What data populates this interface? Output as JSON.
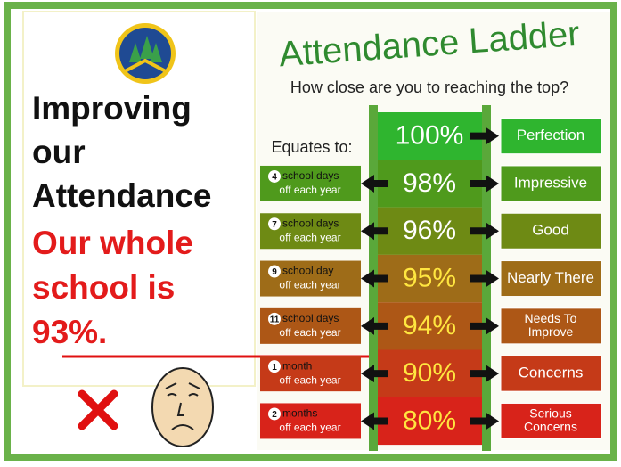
{
  "left_panel": {
    "lines": [
      "Improving",
      "our",
      "Attendance"
    ],
    "highlight_lines": [
      "Our whole",
      "school is",
      "93%."
    ]
  },
  "ladder": {
    "title": "Attendance Ladder",
    "subtitle": "How close are you to reaching the top?",
    "equates_label": "Equates to:",
    "rungs": [
      {
        "percent": "100%",
        "rating": [
          "Perfection"
        ]
      },
      {
        "percent": "98%",
        "days_number": "4",
        "days_text": "school days",
        "per_year": "off each year",
        "rating": [
          "Impressive"
        ]
      },
      {
        "percent": "96%",
        "days_number": "7",
        "days_text": "school days",
        "per_year": "off each year",
        "rating": [
          "Good"
        ]
      },
      {
        "percent": "95%",
        "days_number": "9",
        "days_text": "school day",
        "per_year": "off each year",
        "rating": [
          "Nearly There"
        ]
      },
      {
        "percent": "94%",
        "days_number": "11",
        "days_text": "school days",
        "per_year": "off each year",
        "rating": [
          "Needs To",
          "Improve"
        ]
      },
      {
        "percent": "90%",
        "days_number": "1",
        "days_text": "month",
        "per_year": "off each year",
        "rating": [
          "Concerns"
        ]
      },
      {
        "percent": "80%",
        "days_number": "2",
        "days_text": "months",
        "per_year": "off each year",
        "rating": [
          "Serious",
          "Concerns"
        ]
      }
    ]
  }
}
